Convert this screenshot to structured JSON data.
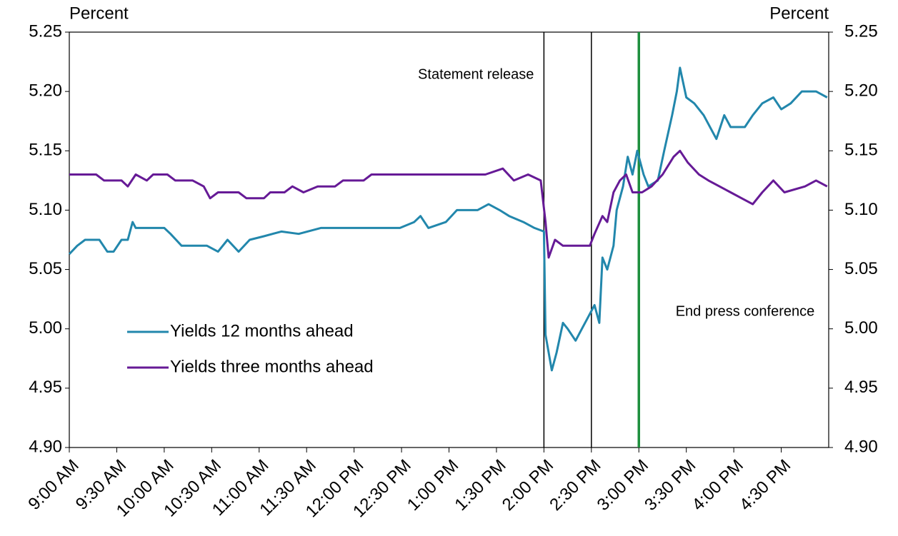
{
  "chart_data": {
    "type": "line",
    "y_label": "Percent",
    "y2_label": "Percent",
    "xlim": [
      540,
      1020
    ],
    "xticks": [
      {
        "value": 540,
        "label": "9:00 AM"
      },
      {
        "value": 570,
        "label": "9:30 AM"
      },
      {
        "value": 600,
        "label": "10:00 AM"
      },
      {
        "value": 630,
        "label": "10:30 AM"
      },
      {
        "value": 660,
        "label": "11:00 AM"
      },
      {
        "value": 690,
        "label": "11:30 AM"
      },
      {
        "value": 720,
        "label": "12:00 PM"
      },
      {
        "value": 750,
        "label": "12:30 PM"
      },
      {
        "value": 780,
        "label": "1:00 PM"
      },
      {
        "value": 810,
        "label": "1:30 PM"
      },
      {
        "value": 840,
        "label": "2:00 PM"
      },
      {
        "value": 870,
        "label": "2:30 PM"
      },
      {
        "value": 900,
        "label": "3:00 PM"
      },
      {
        "value": 930,
        "label": "3:30 PM"
      },
      {
        "value": 960,
        "label": "4:00 PM"
      },
      {
        "value": 990,
        "label": "4:30 PM"
      }
    ],
    "ylim": [
      4.9,
      5.25
    ],
    "yticks": [
      {
        "value": 4.9,
        "label": "4.90"
      },
      4.95,
      {
        "value": 5,
        "label": "5.00"
      },
      5.05,
      {
        "value": 5.1,
        "label": "5.10"
      },
      5.15,
      {
        "value": 5.2,
        "label": "5.20"
      },
      5.25
    ],
    "y2lim": [
      4.9,
      5.25
    ],
    "y2ticks": [
      {
        "value": 4.9,
        "label": "4.90"
      },
      4.95,
      {
        "value": 5,
        "label": "5.00"
      },
      5.05,
      {
        "value": 5.1,
        "label": "5.10"
      },
      5.15,
      {
        "value": 5.2,
        "label": "5.20"
      },
      5.25
    ],
    "series": [
      {
        "name": "Yields 12 months ahead",
        "color": "#2287ac",
        "x": [
          540,
          545,
          550,
          559,
          564,
          568,
          573,
          577,
          580,
          582,
          600,
          604,
          611,
          627,
          634,
          640,
          647,
          654,
          663,
          674,
          685,
          699,
          713,
          731,
          749,
          758,
          762,
          767,
          778,
          785,
          798,
          805,
          812,
          818,
          827,
          834,
          840,
          841,
          845,
          848,
          852,
          855,
          860,
          864,
          868,
          872,
          875,
          877,
          880,
          884,
          886,
          890,
          893,
          896,
          899,
          903,
          906,
          912,
          916,
          921,
          924,
          926,
          930,
          935,
          941,
          947,
          949,
          954,
          958,
          967,
          972,
          978,
          985,
          990,
          996,
          1003,
          1012,
          1019
        ],
        "values": [
          5.063,
          5.07,
          5.075,
          5.075,
          5.065,
          5.065,
          5.075,
          5.075,
          5.09,
          5.085,
          5.085,
          5.08,
          5.07,
          5.07,
          5.065,
          5.075,
          5.065,
          5.075,
          5.078,
          5.082,
          5.08,
          5.085,
          5.085,
          5.085,
          5.085,
          5.09,
          5.095,
          5.085,
          5.09,
          5.1,
          5.1,
          5.105,
          5.1,
          5.095,
          5.09,
          5.085,
          5.082,
          4.995,
          4.965,
          4.98,
          5.005,
          5.0,
          4.99,
          5.0,
          5.01,
          5.02,
          5.005,
          5.06,
          5.05,
          5.07,
          5.1,
          5.12,
          5.145,
          5.13,
          5.15,
          5.13,
          5.12,
          5.125,
          5.15,
          5.18,
          5.2,
          5.22,
          5.195,
          5.19,
          5.18,
          5.165,
          5.16,
          5.18,
          5.17,
          5.17,
          5.18,
          5.19,
          5.195,
          5.185,
          5.19,
          5.2,
          5.2,
          5.195
        ]
      },
      {
        "name": "Yields three months ahead",
        "color": "#661a96",
        "x": [
          540,
          550,
          557,
          562,
          573,
          577,
          582,
          589,
          593,
          602,
          607,
          618,
          625,
          629,
          634,
          647,
          652,
          663,
          667,
          676,
          681,
          688,
          697,
          708,
          713,
          726,
          731,
          749,
          762,
          780,
          803,
          814,
          821,
          830,
          838,
          841,
          843,
          847,
          852,
          861,
          869,
          872,
          877,
          880,
          884,
          888,
          892,
          896,
          902,
          908,
          915,
          922,
          926,
          931,
          938,
          944,
          951,
          958,
          965,
          972,
          978,
          985,
          992,
          1005,
          1012,
          1019
        ],
        "values": [
          5.13,
          5.13,
          5.13,
          5.125,
          5.125,
          5.12,
          5.13,
          5.125,
          5.13,
          5.13,
          5.125,
          5.125,
          5.12,
          5.11,
          5.115,
          5.115,
          5.11,
          5.11,
          5.115,
          5.115,
          5.12,
          5.115,
          5.12,
          5.12,
          5.125,
          5.125,
          5.13,
          5.13,
          5.13,
          5.13,
          5.13,
          5.135,
          5.125,
          5.13,
          5.125,
          5.09,
          5.06,
          5.075,
          5.07,
          5.07,
          5.07,
          5.08,
          5.095,
          5.09,
          5.115,
          5.125,
          5.13,
          5.115,
          5.115,
          5.12,
          5.13,
          5.145,
          5.15,
          5.14,
          5.13,
          5.125,
          5.12,
          5.115,
          5.11,
          5.105,
          5.115,
          5.125,
          5.115,
          5.12,
          5.125,
          5.12
        ]
      }
    ],
    "vlines": [
      {
        "x": 840,
        "color": "#000000",
        "label": "Statement release"
      },
      {
        "x": 870,
        "color": "#000000"
      },
      {
        "x": 900,
        "color": "#1e8f3e",
        "label": "End press conference"
      }
    ]
  }
}
